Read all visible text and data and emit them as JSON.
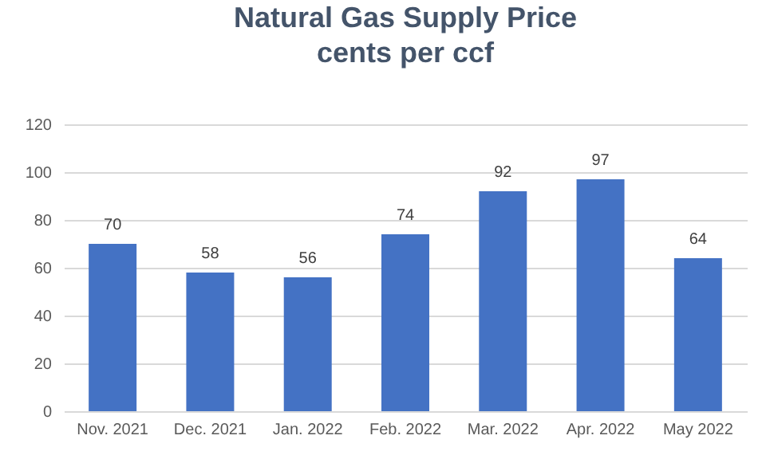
{
  "chart_data": {
    "type": "bar",
    "title": "Natural Gas Supply Price",
    "subtitle": "cents per ccf",
    "categories": [
      "Nov. 2021",
      "Dec. 2021",
      "Jan. 2022",
      "Feb. 2022",
      "Mar. 2022",
      "Apr. 2022",
      "May 2022"
    ],
    "values": [
      70,
      58,
      56,
      74,
      92,
      97,
      64
    ],
    "color": "#4472c4",
    "ylim": [
      0,
      120
    ],
    "yticks": [
      0,
      20,
      40,
      60,
      80,
      100,
      120
    ],
    "grid": "y",
    "data_labels": true
  }
}
